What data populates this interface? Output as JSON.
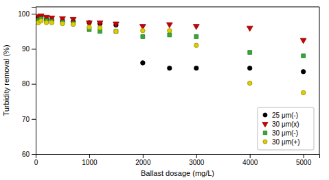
{
  "chart_data": {
    "type": "scatter",
    "x_label": "Ballast dosage (mg/L)",
    "y_label": "Turbidity removal (%)",
    "x": [
      50,
      100,
      200,
      300,
      500,
      700,
      1000,
      1200,
      1500,
      2000,
      2500,
      3000,
      4000,
      5000
    ],
    "series": [
      {
        "name": "25 μm(-)",
        "color": "black",
        "marker": "circle",
        "values": [
          98.8,
          99.2,
          98.5,
          98.2,
          98.0,
          97.8,
          97.5,
          97.2,
          96.8,
          86.0,
          84.5,
          84.5,
          84.5,
          83.5
        ]
      },
      {
        "name": "30 μm(x)",
        "color": "#cc0000",
        "marker": "triangle-down",
        "values": [
          99.3,
          99.5,
          99.1,
          98.9,
          98.7,
          98.5,
          97.5,
          97.5,
          97.2,
          96.5,
          97.0,
          96.5,
          96.0,
          92.5
        ]
      },
      {
        "name": "30 μm(-)",
        "color": "#33aa33",
        "marker": "square",
        "values": [
          98.2,
          98.6,
          98.1,
          97.9,
          97.6,
          97.3,
          95.5,
          95.0,
          95.0,
          93.5,
          94.0,
          93.5,
          89.0,
          88.0
        ]
      },
      {
        "name": "30 μm(+)",
        "color": "#ddcc00",
        "marker": "circle",
        "values": [
          97.5,
          98.0,
          97.5,
          97.5,
          97.2,
          97.0,
          96.2,
          96.0,
          95.0,
          95.2,
          95.2,
          91.0,
          80.2,
          77.5
        ]
      }
    ],
    "xlim": [
      0,
      5300
    ],
    "ylim": [
      60,
      102
    ],
    "xticks": [
      0,
      1000,
      2000,
      3000,
      4000,
      5000
    ],
    "yticks": [
      60,
      70,
      80,
      90,
      100
    ],
    "grid": false,
    "legend": "lower right"
  }
}
